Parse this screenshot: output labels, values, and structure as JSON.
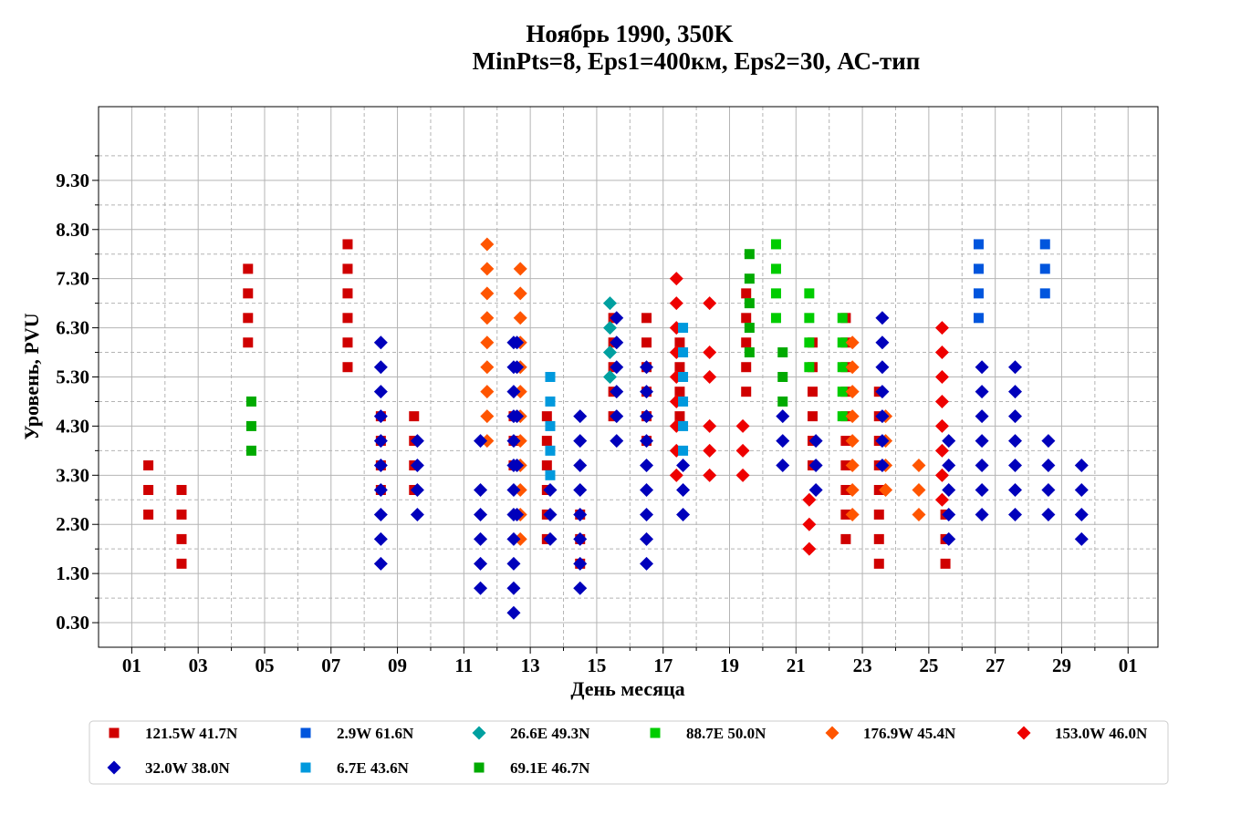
{
  "chart_data": {
    "type": "scatter",
    "title": "Ноябрь 1990, 350K",
    "subtitle": "MinPts=8, Eps1=400км, Eps2=30, АС-тип",
    "xlabel": "День месяца",
    "ylabel": "Уровень, PVU",
    "xlim": [
      0,
      31.9
    ],
    "ylim": [
      -0.2,
      10.8
    ],
    "x_ticks_major": [
      1,
      3,
      5,
      7,
      9,
      11,
      13,
      15,
      17,
      19,
      21,
      23,
      25,
      27,
      29,
      31
    ],
    "x_tick_labels": [
      "01",
      "03",
      "05",
      "07",
      "09",
      "11",
      "13",
      "15",
      "17",
      "19",
      "21",
      "23",
      "25",
      "27",
      "29",
      "01"
    ],
    "y_ticks_major": [
      0.3,
      1.3,
      2.3,
      3.3,
      4.3,
      5.3,
      6.3,
      7.3,
      8.3,
      9.3
    ],
    "y_tick_labels": [
      "0.30",
      "1.30",
      "2.30",
      "3.30",
      "4.30",
      "5.30",
      "6.30",
      "7.30",
      "8.30",
      "9.30"
    ],
    "grid": true,
    "legend_placement": "bottom",
    "series": [
      {
        "name": "121.5W 41.7N",
        "marker": "square",
        "color": "#d00000",
        "points": [
          [
            1.5,
            3.5
          ],
          [
            1.5,
            3.0
          ],
          [
            1.5,
            2.5
          ],
          [
            2.5,
            3.0
          ],
          [
            2.5,
            2.5
          ],
          [
            2.5,
            2.0
          ],
          [
            2.5,
            1.5
          ],
          [
            4.5,
            7.5
          ],
          [
            4.5,
            7.0
          ],
          [
            4.5,
            6.5
          ],
          [
            4.5,
            6.0
          ],
          [
            7.5,
            8.0
          ],
          [
            7.5,
            7.5
          ],
          [
            7.5,
            7.0
          ],
          [
            7.5,
            6.5
          ],
          [
            7.5,
            6.0
          ],
          [
            7.5,
            5.5
          ],
          [
            8.5,
            4.5
          ],
          [
            8.5,
            4.0
          ],
          [
            8.5,
            3.5
          ],
          [
            8.5,
            3.0
          ],
          [
            9.5,
            4.5
          ],
          [
            9.5,
            4.0
          ],
          [
            9.5,
            3.5
          ],
          [
            9.5,
            3.0
          ],
          [
            12.5,
            4.5
          ],
          [
            12.5,
            4.0
          ],
          [
            12.5,
            3.5
          ],
          [
            13.5,
            4.5
          ],
          [
            13.5,
            4.0
          ],
          [
            13.5,
            3.5
          ],
          [
            13.5,
            3.0
          ],
          [
            13.5,
            2.5
          ],
          [
            13.5,
            2.0
          ],
          [
            14.5,
            2.5
          ],
          [
            14.5,
            2.0
          ],
          [
            14.5,
            1.5
          ],
          [
            15.5,
            6.5
          ],
          [
            15.5,
            6.0
          ],
          [
            15.5,
            5.5
          ],
          [
            15.5,
            5.0
          ],
          [
            15.5,
            4.5
          ],
          [
            16.5,
            6.5
          ],
          [
            16.5,
            6.0
          ],
          [
            16.5,
            5.5
          ],
          [
            16.5,
            5.0
          ],
          [
            16.5,
            4.5
          ],
          [
            16.5,
            4.0
          ],
          [
            17.5,
            6.0
          ],
          [
            17.5,
            5.5
          ],
          [
            17.5,
            5.0
          ],
          [
            17.5,
            4.5
          ],
          [
            19.5,
            7.0
          ],
          [
            19.5,
            6.5
          ],
          [
            19.5,
            6.0
          ],
          [
            19.5,
            5.5
          ],
          [
            19.5,
            5.0
          ],
          [
            21.5,
            6.0
          ],
          [
            21.5,
            5.5
          ],
          [
            21.5,
            5.0
          ],
          [
            21.5,
            4.5
          ],
          [
            21.5,
            4.0
          ],
          [
            21.5,
            3.5
          ],
          [
            22.5,
            6.5
          ],
          [
            22.5,
            6.0
          ],
          [
            22.5,
            5.5
          ],
          [
            22.5,
            5.0
          ],
          [
            22.5,
            4.5
          ],
          [
            22.5,
            4.0
          ],
          [
            22.5,
            3.5
          ],
          [
            22.5,
            3.0
          ],
          [
            22.5,
            2.5
          ],
          [
            22.5,
            2.0
          ],
          [
            23.5,
            5.0
          ],
          [
            23.5,
            4.5
          ],
          [
            23.5,
            4.0
          ],
          [
            23.5,
            3.5
          ],
          [
            23.5,
            3.0
          ],
          [
            23.5,
            2.5
          ],
          [
            23.5,
            2.0
          ],
          [
            23.5,
            1.5
          ],
          [
            25.5,
            2.5
          ],
          [
            25.5,
            2.0
          ],
          [
            25.5,
            1.5
          ]
        ]
      },
      {
        "name": "2.9W 61.6N",
        "marker": "square",
        "color": "#0055dd",
        "points": [
          [
            26.5,
            8.0
          ],
          [
            26.5,
            7.5
          ],
          [
            26.5,
            7.0
          ],
          [
            26.5,
            6.5
          ],
          [
            28.5,
            8.0
          ],
          [
            28.5,
            7.5
          ],
          [
            28.5,
            7.0
          ]
        ]
      },
      {
        "name": "26.6E 49.3N",
        "marker": "diamond",
        "color": "#00a0a0",
        "points": [
          [
            15.4,
            6.8
          ],
          [
            15.4,
            6.3
          ],
          [
            15.4,
            5.8
          ],
          [
            15.4,
            5.3
          ]
        ]
      },
      {
        "name": "88.7E 50.0N",
        "marker": "square",
        "color": "#00cc00",
        "points": [
          [
            20.4,
            8.0
          ],
          [
            20.4,
            7.5
          ],
          [
            20.4,
            7.0
          ],
          [
            20.4,
            6.5
          ],
          [
            21.4,
            7.0
          ],
          [
            21.4,
            6.5
          ],
          [
            21.4,
            6.0
          ],
          [
            21.4,
            5.5
          ],
          [
            22.4,
            6.5
          ],
          [
            22.4,
            6.0
          ],
          [
            22.4,
            5.5
          ],
          [
            22.4,
            5.0
          ],
          [
            22.4,
            4.5
          ]
        ]
      },
      {
        "name": "176.9W 45.4N",
        "marker": "diamond",
        "color": "#ff5500",
        "points": [
          [
            11.7,
            8.0
          ],
          [
            11.7,
            7.5
          ],
          [
            11.7,
            7.0
          ],
          [
            11.7,
            6.5
          ],
          [
            11.7,
            6.0
          ],
          [
            11.7,
            5.5
          ],
          [
            11.7,
            5.0
          ],
          [
            11.7,
            4.5
          ],
          [
            11.7,
            4.0
          ],
          [
            12.7,
            7.5
          ],
          [
            12.7,
            7.0
          ],
          [
            12.7,
            6.5
          ],
          [
            12.7,
            6.0
          ],
          [
            12.7,
            5.5
          ],
          [
            12.7,
            5.0
          ],
          [
            12.7,
            4.5
          ],
          [
            12.7,
            4.0
          ],
          [
            12.7,
            3.5
          ],
          [
            12.7,
            3.0
          ],
          [
            12.7,
            2.5
          ],
          [
            12.7,
            2.0
          ],
          [
            22.7,
            6.0
          ],
          [
            22.7,
            5.5
          ],
          [
            22.7,
            5.0
          ],
          [
            22.7,
            4.5
          ],
          [
            22.7,
            4.0
          ],
          [
            22.7,
            3.5
          ],
          [
            22.7,
            3.0
          ],
          [
            22.7,
            2.5
          ],
          [
            23.7,
            4.5
          ],
          [
            23.7,
            4.0
          ],
          [
            23.7,
            3.5
          ],
          [
            23.7,
            3.0
          ],
          [
            24.7,
            3.5
          ],
          [
            24.7,
            3.0
          ],
          [
            24.7,
            2.5
          ]
        ]
      },
      {
        "name": "153.0W 46.0N",
        "marker": "diamond",
        "color": "#ee0000",
        "points": [
          [
            17.4,
            7.3
          ],
          [
            17.4,
            6.8
          ],
          [
            17.4,
            6.3
          ],
          [
            17.4,
            5.8
          ],
          [
            17.4,
            5.3
          ],
          [
            17.4,
            4.8
          ],
          [
            17.4,
            4.3
          ],
          [
            17.4,
            3.8
          ],
          [
            17.4,
            3.3
          ],
          [
            18.4,
            6.8
          ],
          [
            18.4,
            5.8
          ],
          [
            18.4,
            5.3
          ],
          [
            18.4,
            4.3
          ],
          [
            18.4,
            3.8
          ],
          [
            18.4,
            3.3
          ],
          [
            19.4,
            4.3
          ],
          [
            19.4,
            3.8
          ],
          [
            19.4,
            3.3
          ],
          [
            21.4,
            2.8
          ],
          [
            21.4,
            2.3
          ],
          [
            21.4,
            1.8
          ],
          [
            25.4,
            6.3
          ],
          [
            25.4,
            5.8
          ],
          [
            25.4,
            5.3
          ],
          [
            25.4,
            4.8
          ],
          [
            25.4,
            4.3
          ],
          [
            25.4,
            3.8
          ],
          [
            25.4,
            3.3
          ],
          [
            25.4,
            2.8
          ]
        ]
      },
      {
        "name": "32.0W 38.0N",
        "marker": "diamond",
        "color": "#0000bb",
        "points": [
          [
            8.5,
            6.0
          ],
          [
            8.5,
            5.5
          ],
          [
            8.5,
            5.0
          ],
          [
            8.5,
            4.5
          ],
          [
            8.5,
            4.0
          ],
          [
            8.5,
            3.5
          ],
          [
            8.5,
            3.0
          ],
          [
            8.5,
            2.5
          ],
          [
            8.5,
            2.0
          ],
          [
            8.5,
            1.5
          ],
          [
            9.6,
            4.0
          ],
          [
            9.6,
            3.5
          ],
          [
            9.6,
            3.0
          ],
          [
            9.6,
            2.5
          ],
          [
            11.5,
            4.0
          ],
          [
            11.5,
            3.0
          ],
          [
            11.5,
            2.5
          ],
          [
            11.5,
            2.0
          ],
          [
            11.5,
            1.5
          ],
          [
            11.5,
            1.0
          ],
          [
            12.5,
            6.0
          ],
          [
            12.5,
            5.5
          ],
          [
            12.5,
            5.0
          ],
          [
            12.5,
            4.5
          ],
          [
            12.5,
            4.0
          ],
          [
            12.5,
            3.5
          ],
          [
            12.5,
            3.0
          ],
          [
            12.5,
            2.5
          ],
          [
            12.5,
            2.0
          ],
          [
            12.5,
            1.5
          ],
          [
            12.5,
            1.0
          ],
          [
            12.5,
            0.5
          ],
          [
            12.6,
            6.0
          ],
          [
            12.6,
            5.5
          ],
          [
            12.6,
            4.5
          ],
          [
            12.6,
            3.5
          ],
          [
            12.6,
            2.5
          ],
          [
            13.6,
            3.0
          ],
          [
            13.6,
            2.5
          ],
          [
            13.6,
            2.0
          ],
          [
            14.5,
            4.5
          ],
          [
            14.5,
            4.0
          ],
          [
            14.5,
            3.5
          ],
          [
            14.5,
            3.0
          ],
          [
            14.5,
            2.5
          ],
          [
            14.5,
            2.0
          ],
          [
            14.5,
            1.5
          ],
          [
            14.5,
            1.0
          ],
          [
            15.6,
            6.5
          ],
          [
            15.6,
            6.0
          ],
          [
            15.6,
            5.5
          ],
          [
            15.6,
            5.0
          ],
          [
            15.6,
            4.5
          ],
          [
            15.6,
            4.0
          ],
          [
            16.5,
            5.5
          ],
          [
            16.5,
            5.0
          ],
          [
            16.5,
            4.5
          ],
          [
            16.5,
            4.0
          ],
          [
            16.5,
            3.5
          ],
          [
            16.5,
            3.0
          ],
          [
            16.5,
            2.5
          ],
          [
            16.5,
            2.0
          ],
          [
            16.5,
            1.5
          ],
          [
            17.6,
            3.5
          ],
          [
            17.6,
            3.0
          ],
          [
            17.6,
            2.5
          ],
          [
            20.6,
            4.5
          ],
          [
            20.6,
            4.0
          ],
          [
            20.6,
            3.5
          ],
          [
            21.6,
            4.0
          ],
          [
            21.6,
            3.5
          ],
          [
            21.6,
            3.0
          ],
          [
            23.6,
            6.5
          ],
          [
            23.6,
            6.0
          ],
          [
            23.6,
            5.5
          ],
          [
            23.6,
            5.0
          ],
          [
            23.6,
            4.5
          ],
          [
            23.6,
            4.0
          ],
          [
            23.6,
            3.5
          ],
          [
            25.6,
            4.0
          ],
          [
            25.6,
            3.5
          ],
          [
            25.6,
            3.0
          ],
          [
            25.6,
            2.5
          ],
          [
            25.6,
            2.0
          ],
          [
            26.6,
            5.5
          ],
          [
            26.6,
            5.0
          ],
          [
            26.6,
            4.5
          ],
          [
            26.6,
            4.0
          ],
          [
            26.6,
            3.5
          ],
          [
            26.6,
            3.0
          ],
          [
            26.6,
            2.5
          ],
          [
            27.6,
            5.5
          ],
          [
            27.6,
            5.0
          ],
          [
            27.6,
            4.5
          ],
          [
            27.6,
            4.0
          ],
          [
            27.6,
            3.5
          ],
          [
            27.6,
            3.0
          ],
          [
            27.6,
            2.5
          ],
          [
            28.6,
            4.0
          ],
          [
            28.6,
            3.5
          ],
          [
            28.6,
            3.0
          ],
          [
            28.6,
            2.5
          ],
          [
            29.6,
            3.5
          ],
          [
            29.6,
            3.0
          ],
          [
            29.6,
            2.5
          ],
          [
            29.6,
            2.0
          ]
        ]
      },
      {
        "name": "6.7E 43.6N",
        "marker": "square",
        "color": "#0099dd",
        "points": [
          [
            13.6,
            5.3
          ],
          [
            13.6,
            4.8
          ],
          [
            13.6,
            4.3
          ],
          [
            13.6,
            3.8
          ],
          [
            13.6,
            3.3
          ],
          [
            17.6,
            6.3
          ],
          [
            17.6,
            5.8
          ],
          [
            17.6,
            5.3
          ],
          [
            17.6,
            4.8
          ],
          [
            17.6,
            4.3
          ],
          [
            17.6,
            3.8
          ]
        ]
      },
      {
        "name": "69.1E 46.7N",
        "marker": "square",
        "color": "#00aa00",
        "points": [
          [
            4.6,
            4.8
          ],
          [
            4.6,
            4.3
          ],
          [
            4.6,
            3.8
          ],
          [
            19.6,
            7.8
          ],
          [
            19.6,
            7.3
          ],
          [
            19.6,
            6.8
          ],
          [
            19.6,
            6.3
          ],
          [
            19.6,
            5.8
          ],
          [
            20.6,
            5.8
          ],
          [
            20.6,
            5.3
          ],
          [
            20.6,
            4.8
          ]
        ]
      }
    ]
  }
}
